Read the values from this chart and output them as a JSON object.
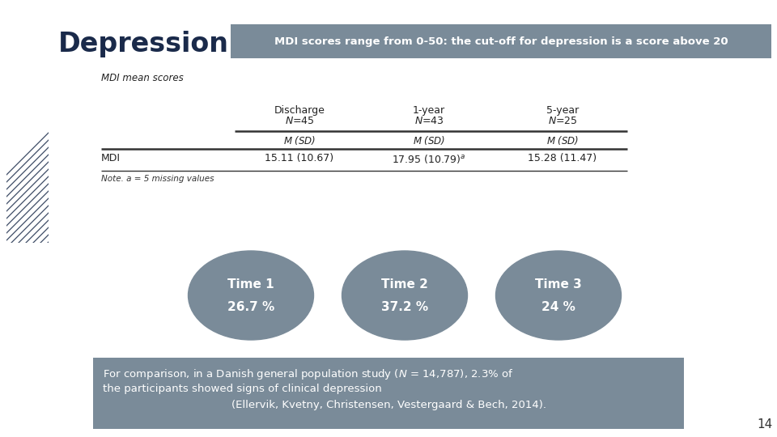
{
  "title": "Depression",
  "header_box_text": "MDI scores range from 0-50: the cut-off for depression is a score above 20",
  "header_box_color": "#7a8b99",
  "subtitle_italic": "MDI mean scores",
  "circles": [
    {
      "label": "Time 1",
      "value": "26.7 %",
      "color": "#7a8b99"
    },
    {
      "label": "Time 2",
      "value": "37.2 %",
      "color": "#7a8b99"
    },
    {
      "label": "Time 3",
      "value": "24 %",
      "color": "#7a8b99"
    }
  ],
  "footer_box_color": "#7a8b99",
  "footer_line1_pre": "For comparison, in a Danish general population study (",
  "footer_line1_N": "N",
  "footer_line1_post": " = 14,787), 2.3% of",
  "footer_line2": "the participants showed signs of clinical depression",
  "footer_line3": "(Ellervik, Kvetny, Christensen, Vestergaard & Bech, 2014).",
  "page_number": "14",
  "bg_color": "#ffffff",
  "title_color": "#1a2a4a",
  "title_fontsize": 24,
  "header_text_color": "#ffffff",
  "footer_text_color": "#ffffff",
  "table_color": "#222222",
  "note_color": "#333333",
  "hatch_color": "#1a2a4a"
}
